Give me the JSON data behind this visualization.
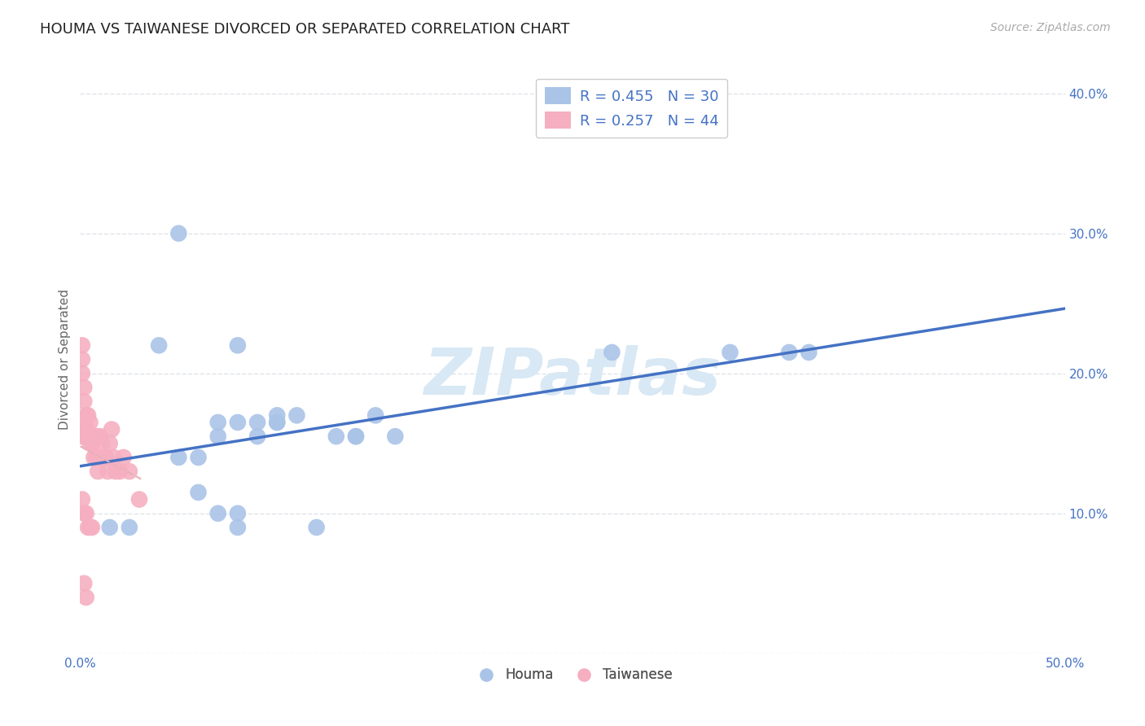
{
  "title": "HOUMA VS TAIWANESE DIVORCED OR SEPARATED CORRELATION CHART",
  "source": "Source: ZipAtlas.com",
  "ylabel": "Divorced or Separated",
  "xlim": [
    0.0,
    0.5
  ],
  "ylim": [
    0.0,
    0.42
  ],
  "xticks": [
    0.0,
    0.1,
    0.2,
    0.3,
    0.4,
    0.5
  ],
  "yticks": [
    0.0,
    0.1,
    0.2,
    0.3,
    0.4
  ],
  "houma_color": "#aac4e8",
  "taiwanese_color": "#f5afc0",
  "houma_line_color": "#4472c4",
  "taiwanese_line_color": "#e8b0b8",
  "houma_R": 0.455,
  "houma_N": 30,
  "taiwanese_R": 0.257,
  "taiwanese_N": 44,
  "houma_scatter_x": [
    0.015,
    0.025,
    0.05,
    0.08,
    0.05,
    0.06,
    0.07,
    0.08,
    0.09,
    0.1,
    0.11,
    0.06,
    0.07,
    0.13,
    0.14,
    0.15,
    0.36,
    0.37,
    0.07,
    0.08,
    0.09,
    0.1,
    0.27,
    0.33,
    0.08,
    0.12,
    0.14,
    0.04,
    0.1,
    0.16
  ],
  "houma_scatter_y": [
    0.09,
    0.09,
    0.3,
    0.22,
    0.14,
    0.14,
    0.165,
    0.165,
    0.165,
    0.17,
    0.17,
    0.115,
    0.155,
    0.155,
    0.155,
    0.17,
    0.215,
    0.215,
    0.1,
    0.1,
    0.155,
    0.165,
    0.215,
    0.215,
    0.09,
    0.09,
    0.155,
    0.22,
    0.165,
    0.155
  ],
  "taiwanese_scatter_x": [
    0.001,
    0.001,
    0.001,
    0.001,
    0.002,
    0.002,
    0.002,
    0.003,
    0.003,
    0.003,
    0.004,
    0.004,
    0.005,
    0.005,
    0.006,
    0.006,
    0.007,
    0.007,
    0.008,
    0.008,
    0.009,
    0.009,
    0.01,
    0.01,
    0.011,
    0.012,
    0.013,
    0.014,
    0.015,
    0.016,
    0.017,
    0.018,
    0.02,
    0.022,
    0.025,
    0.03,
    0.001,
    0.002,
    0.003,
    0.004,
    0.005,
    0.006,
    0.002,
    0.003
  ],
  "taiwanese_scatter_y": [
    0.2,
    0.21,
    0.22,
    0.155,
    0.19,
    0.18,
    0.165,
    0.16,
    0.17,
    0.155,
    0.17,
    0.155,
    0.15,
    0.165,
    0.15,
    0.155,
    0.14,
    0.155,
    0.14,
    0.155,
    0.13,
    0.155,
    0.14,
    0.155,
    0.15,
    0.14,
    0.14,
    0.13,
    0.15,
    0.16,
    0.14,
    0.13,
    0.13,
    0.14,
    0.13,
    0.11,
    0.11,
    0.1,
    0.1,
    0.09,
    0.09,
    0.09,
    0.05,
    0.04
  ],
  "background_color": "#ffffff",
  "grid_color": "#e0e4ea",
  "watermark_text": "ZIPatlas",
  "watermark_color": "#d8e8f4"
}
